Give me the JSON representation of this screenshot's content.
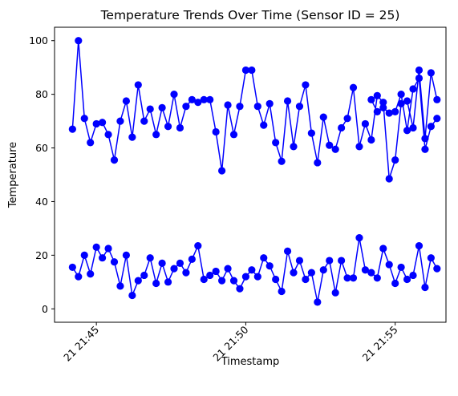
{
  "chart_data": {
    "type": "line",
    "title": "Temperature Trends Over Time (Sensor ID = 25)",
    "xlabel": "Timestamp",
    "ylabel": "Temperature",
    "ylim": [
      -5,
      105
    ],
    "yticks": [
      0,
      20,
      40,
      60,
      80,
      100
    ],
    "xlim": [
      43.6,
      56.7
    ],
    "xticks": [
      {
        "value": 45,
        "label": "21 21:45"
      },
      {
        "value": 50,
        "label": "21 21:50"
      },
      {
        "value": 55,
        "label": "21 21:55"
      }
    ],
    "grid": false,
    "legend": "none",
    "series": [
      {
        "color": "#0000ff",
        "marker": "circle",
        "x": [
          44.2,
          44.4,
          44.6,
          44.8,
          45.0,
          45.2,
          45.4,
          45.6,
          45.8,
          46.0,
          46.2,
          46.4,
          46.6,
          46.8,
          47.0,
          47.2,
          47.4,
          47.6,
          47.8,
          48.0,
          48.2,
          48.4,
          48.6,
          48.8,
          49.0,
          49.2,
          49.4,
          49.6,
          49.8,
          50.0,
          50.2,
          50.4,
          50.6,
          50.8,
          51.0,
          51.2,
          51.4,
          51.6,
          51.8,
          52.0,
          52.2,
          52.4,
          52.6,
          52.8,
          53.0,
          53.2,
          53.4,
          53.6,
          53.8,
          54.0,
          54.2,
          54.4,
          54.6,
          54.8,
          55.0,
          55.2,
          55.4,
          55.6,
          55.8,
          56.0,
          56.2,
          56.4
        ],
        "y": [
          67,
          100,
          71,
          62,
          69,
          69.5,
          65,
          55.5,
          70,
          77.5,
          64,
          83.5,
          70,
          74.5,
          65,
          75,
          68,
          80,
          67.5,
          75.5,
          78,
          77,
          78,
          78,
          66,
          51.5,
          76,
          65,
          75.5,
          89,
          89,
          75.5,
          68.5,
          76.5,
          62,
          55,
          77.5,
          60.5,
          75.5,
          83.5,
          65.5,
          54.5,
          71.5,
          61,
          59.5,
          67.5,
          71,
          82.5,
          60.5,
          69,
          63,
          79.5,
          77,
          48.5,
          55.5,
          76.5,
          77.5,
          67.5,
          89,
          63.5,
          88,
          78
        ]
      },
      {
        "color": "#0000ff",
        "marker": "circle",
        "x": [
          44.2,
          44.4,
          44.6,
          44.8,
          45.0,
          45.2,
          45.4,
          45.6,
          45.8,
          46.0,
          46.2,
          46.4,
          46.6,
          46.8,
          47.0,
          47.2,
          47.4,
          47.6,
          47.8,
          48.0,
          48.2,
          48.4,
          48.6,
          48.8,
          49.0,
          49.2,
          49.4,
          49.6,
          49.8,
          50.0,
          50.2,
          50.4,
          50.6,
          50.8,
          51.0,
          51.2,
          51.4,
          51.6,
          51.8,
          52.0,
          52.2,
          52.4,
          52.6,
          52.8,
          53.0,
          53.2,
          53.4,
          53.6,
          53.8,
          54.0,
          54.2,
          54.4,
          54.6,
          54.8,
          55.0,
          55.2,
          55.4,
          55.6,
          55.8,
          56.0,
          56.2,
          56.4
        ],
        "y": [
          15.5,
          12,
          20,
          13,
          23,
          19,
          22.5,
          17.5,
          8.5,
          20,
          5,
          10.5,
          12.5,
          19,
          9.5,
          17,
          10,
          15,
          17,
          13.5,
          18.5,
          23.5,
          11,
          12.5,
          14,
          10.5,
          15,
          10.5,
          7.5,
          12,
          14.5,
          12,
          19,
          16,
          11,
          6.5,
          21.5,
          13.5,
          18,
          11,
          13.5,
          2.5,
          14.5,
          18,
          6,
          18,
          11.5,
          11.5,
          26.5,
          14.5,
          13.5,
          11.5,
          22.5,
          16.5,
          9.5,
          15.5,
          11,
          12.5,
          23.5,
          8,
          19,
          15
        ]
      },
      {
        "color": "#0000ff",
        "marker": "circle",
        "x": [
          54.2,
          54.4,
          54.6,
          54.8,
          55.0,
          55.2,
          55.4,
          55.6,
          55.8,
          56.0,
          56.2,
          56.4
        ],
        "y": [
          78,
          73.5,
          75,
          73,
          73.5,
          80,
          66.5,
          82,
          86,
          59.5,
          68,
          71
        ]
      }
    ]
  }
}
